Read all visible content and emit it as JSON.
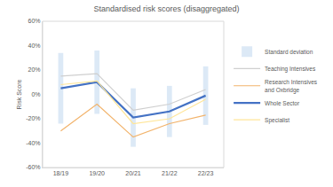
{
  "chart_data": {
    "type": "line",
    "title": "Standardised risk scores (disaggregated)",
    "y_label": "Risk Score",
    "categories": [
      "18/19",
      "19/20",
      "20/21",
      "21/22",
      "22/23"
    ],
    "series": [
      {
        "name": "Standard deviation",
        "type": "bar",
        "color": "#dce9f6",
        "base_series": "Whole Sector",
        "values": [
          29,
          26,
          24,
          21,
          24
        ]
      },
      {
        "name": "Teaching Intensives",
        "color": "#cfcfcf",
        "values": [
          15,
          17,
          -13,
          -8,
          4
        ]
      },
      {
        "name": "Research Intensives and Oxbridge",
        "color": "#f2b36b",
        "values": [
          -30,
          -8,
          -35,
          -24,
          -17
        ]
      },
      {
        "name": "Whole Sector",
        "color": "#4472c4",
        "values": [
          5,
          10,
          -19,
          -14,
          -1
        ]
      },
      {
        "name": "Specialist",
        "color": "#ffe699",
        "values": [
          8,
          11,
          -24,
          -20,
          -4
        ]
      }
    ],
    "ylim": [
      -60,
      60
    ],
    "yticks": [
      {
        "value": -60,
        "label": "-60%"
      },
      {
        "value": -40,
        "label": "-40%"
      },
      {
        "value": -20,
        "label": "-20%"
      },
      {
        "value": 0,
        "label": "0%"
      },
      {
        "value": 20,
        "label": "20%"
      },
      {
        "value": 40,
        "label": "40%"
      },
      {
        "value": 60,
        "label": "60%"
      }
    ],
    "grid": false,
    "legend": "right"
  }
}
